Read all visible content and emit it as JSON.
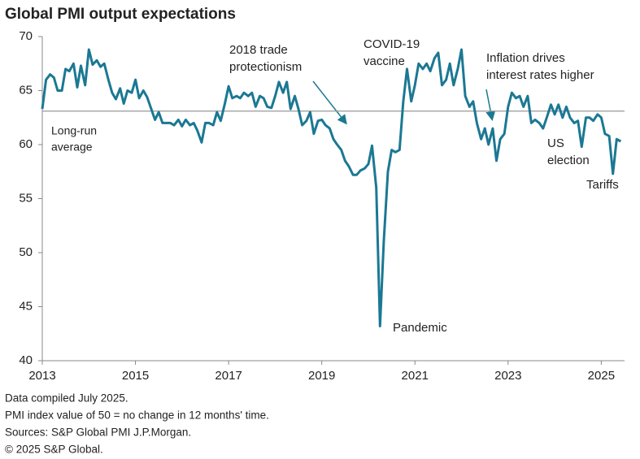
{
  "chart_data": {
    "type": "line",
    "title": "Global PMI output expectations",
    "x": [
      2013,
      2013.08,
      2013.17,
      2013.25,
      2013.33,
      2013.42,
      2013.5,
      2013.58,
      2013.67,
      2013.75,
      2013.83,
      2013.92,
      2014,
      2014.08,
      2014.17,
      2014.25,
      2014.33,
      2014.42,
      2014.5,
      2014.58,
      2014.67,
      2014.75,
      2014.83,
      2014.92,
      2015,
      2015.08,
      2015.17,
      2015.25,
      2015.33,
      2015.42,
      2015.5,
      2015.58,
      2015.67,
      2015.75,
      2015.83,
      2015.92,
      2016,
      2016.08,
      2016.17,
      2016.25,
      2016.33,
      2016.42,
      2016.5,
      2016.58,
      2016.67,
      2016.75,
      2016.83,
      2016.92,
      2017,
      2017.08,
      2017.17,
      2017.25,
      2017.33,
      2017.42,
      2017.5,
      2017.58,
      2017.67,
      2017.75,
      2017.83,
      2017.92,
      2018,
      2018.08,
      2018.17,
      2018.25,
      2018.33,
      2018.42,
      2018.5,
      2018.58,
      2018.67,
      2018.75,
      2018.83,
      2018.92,
      2019,
      2019.08,
      2019.17,
      2019.25,
      2019.33,
      2019.42,
      2019.5,
      2019.58,
      2019.67,
      2019.75,
      2019.83,
      2019.92,
      2020,
      2020.08,
      2020.17,
      2020.25,
      2020.33,
      2020.42,
      2020.5,
      2020.58,
      2020.67,
      2020.75,
      2020.83,
      2020.92,
      2021,
      2021.08,
      2021.17,
      2021.25,
      2021.33,
      2021.42,
      2021.5,
      2021.58,
      2021.67,
      2021.75,
      2021.83,
      2021.92,
      2022,
      2022.08,
      2022.17,
      2022.25,
      2022.33,
      2022.42,
      2022.5,
      2022.58,
      2022.67,
      2022.75,
      2022.83,
      2022.92,
      2023,
      2023.08,
      2023.17,
      2023.25,
      2023.33,
      2023.42,
      2023.5,
      2023.58,
      2023.67,
      2023.75,
      2023.83,
      2023.92,
      2024,
      2024.08,
      2024.17,
      2024.25,
      2024.33,
      2024.42,
      2024.5,
      2024.58,
      2024.67,
      2024.75,
      2024.83,
      2024.92,
      2025,
      2025.08,
      2025.17,
      2025.25,
      2025.33,
      2025.42
    ],
    "series": [
      {
        "color": "#1b7893",
        "values": [
          63.3,
          66,
          66.5,
          66.2,
          65,
          65,
          67,
          66.8,
          67.5,
          65.3,
          67.3,
          65.5,
          68.8,
          67.4,
          67.8,
          67.2,
          67.5,
          66,
          64.8,
          64.2,
          65.2,
          63.8,
          65,
          64.8,
          66,
          64.3,
          65,
          64.4,
          63.4,
          62.3,
          63,
          62,
          62,
          62,
          61.8,
          62.3,
          61.7,
          62.3,
          61.8,
          62,
          61.3,
          60.2,
          62,
          62,
          61.8,
          63,
          62.2,
          63.8,
          65.4,
          64.3,
          64.5,
          64.3,
          64.8,
          64.5,
          64.8,
          63.5,
          64.5,
          64.3,
          63.5,
          63.4,
          64.5,
          65.8,
          64.8,
          65.8,
          63.3,
          64.5,
          63.3,
          61.8,
          62.2,
          63,
          61,
          62.2,
          62.3,
          61.8,
          61.5,
          60.5,
          60,
          59.5,
          58.5,
          58,
          57.2,
          57.2,
          57.6,
          57.8,
          58.2,
          59.9,
          56,
          43.2,
          51,
          57.5,
          59.5,
          59.3,
          59.5,
          64,
          67,
          64,
          65.5,
          67.5,
          67,
          67.5,
          66.8,
          68,
          68.5,
          65.5,
          66,
          67.5,
          65.5,
          67,
          68.8,
          64.5,
          63.5,
          64,
          62,
          60.5,
          61.5,
          60,
          61.5,
          58.5,
          60.5,
          61,
          63.5,
          64.8,
          64.3,
          64.5,
          63.5,
          64.5,
          62,
          62.3,
          62,
          61.5,
          62.5,
          63.7,
          62.8,
          63.7,
          62.5,
          63.5,
          62.5,
          62,
          62.2,
          59.8,
          62.5,
          62.5,
          62.2,
          62.8,
          62.5,
          61,
          60.8,
          57.3,
          60.5,
          60.3
        ]
      }
    ],
    "xlim": [
      2013,
      2025.5
    ],
    "xticks": [
      2013,
      2015,
      2017,
      2019,
      2021,
      2023,
      2025
    ],
    "ylim": [
      40,
      70
    ],
    "yticks": [
      40,
      45,
      50,
      55,
      60,
      65,
      70
    ],
    "reference_line": {
      "value": 63.1,
      "label": [
        "Long-run",
        "average"
      ]
    },
    "annotations": [
      {
        "text": [
          "2018 trade",
          "protectionism"
        ]
      },
      {
        "text": [
          "COVID-19",
          "vaccine"
        ]
      },
      {
        "text": [
          "Inflation drives",
          "interest rates higher"
        ]
      },
      {
        "text": [
          "Pandemic"
        ]
      },
      {
        "text": [
          "US",
          "election"
        ]
      },
      {
        "text": [
          "Tariffs"
        ]
      }
    ],
    "notes": [
      "Data compiled July 2025.",
      "PMI index value of 50 = no change in 12 months' time.",
      "Sources: S&P Global PMI J.P.Morgan.",
      "© 2025 S&P Global."
    ]
  }
}
